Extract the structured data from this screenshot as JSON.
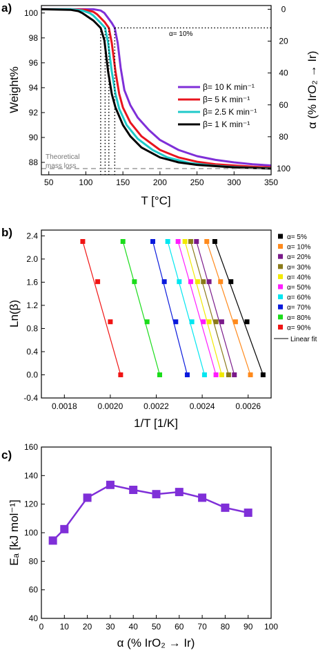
{
  "chart_data": [
    {
      "type": "line",
      "panel_label": "a)",
      "xlabel": "T [°C]",
      "ylabel": "Weight%",
      "y2label": "α (% IrO₂ → Ir)",
      "xlim": [
        40,
        350
      ],
      "ylim": [
        87,
        100.6
      ],
      "y2lim": [
        0,
        100
      ],
      "x_ticks": [
        50,
        100,
        150,
        200,
        250,
        300,
        350
      ],
      "y_ticks": [
        88,
        90,
        92,
        94,
        96,
        98,
        100
      ],
      "y2_ticks": [
        0,
        20,
        40,
        60,
        80,
        100
      ],
      "annotation": "α= 10%",
      "alpha10_weight": 98.8,
      "theoretical_weight": 87.5,
      "theoretical_label": [
        "Theoretical",
        "mass loss"
      ],
      "grid": false,
      "legend_position": "center-right",
      "series": [
        {
          "name": "β= 10 K min⁻¹",
          "color": "#7f2fd8",
          "t10": 139,
          "x": [
            40,
            80,
            100,
            110,
            120,
            125,
            130,
            135,
            139,
            143,
            147,
            152,
            160,
            170,
            185,
            200,
            225,
            250,
            275,
            300,
            325,
            350
          ],
          "y": [
            100.3,
            100.3,
            100.3,
            100.3,
            100.2,
            100.0,
            99.6,
            99.2,
            98.8,
            97.6,
            95.6,
            93.8,
            92.6,
            91.6,
            90.6,
            89.8,
            89.0,
            88.5,
            88.2,
            88.0,
            87.85,
            87.75
          ]
        },
        {
          "name": "β= 5 K min⁻¹",
          "color": "#e8141e",
          "t10": 131,
          "x": [
            40,
            80,
            100,
            110,
            115,
            120,
            125,
            131,
            135,
            140,
            145,
            150,
            160,
            175,
            200,
            225,
            250,
            275,
            300,
            325,
            350
          ],
          "y": [
            100.3,
            100.3,
            100.25,
            100.1,
            99.9,
            99.6,
            99.3,
            98.8,
            97.6,
            95.3,
            93.5,
            92.4,
            91.2,
            90.1,
            89.0,
            88.4,
            88.05,
            87.85,
            87.75,
            87.65,
            87.6
          ]
        },
        {
          "name": "β= 2.5 K min⁻¹",
          "color": "#1fc9c9",
          "t10": 126,
          "x": [
            40,
            80,
            95,
            105,
            110,
            115,
            120,
            126,
            130,
            135,
            140,
            145,
            155,
            170,
            190,
            210,
            240,
            270,
            300,
            325,
            350
          ],
          "y": [
            100.3,
            100.3,
            100.2,
            100.0,
            99.8,
            99.5,
            99.2,
            98.8,
            97.6,
            95.3,
            93.5,
            92.3,
            91.0,
            89.9,
            89.0,
            88.4,
            87.95,
            87.75,
            87.62,
            87.56,
            87.52
          ]
        },
        {
          "name": "β= 1 K min⁻¹",
          "color": "#000000",
          "t10": 120,
          "x": [
            40,
            80,
            90,
            95,
            100,
            105,
            110,
            115,
            120,
            125,
            130,
            135,
            140,
            150,
            160,
            175,
            200,
            225,
            250,
            300,
            350
          ],
          "y": [
            100.3,
            100.25,
            100.15,
            100.0,
            99.8,
            99.6,
            99.4,
            99.1,
            98.8,
            97.8,
            95.3,
            93.5,
            92.4,
            91.0,
            90.1,
            89.2,
            88.4,
            88.0,
            87.8,
            87.6,
            87.5
          ]
        }
      ]
    },
    {
      "type": "scatter",
      "panel_label": "b)",
      "xlabel": "1/T [1/K]",
      "ylabel": "Ln(β)",
      "xlim": [
        0.0017,
        0.0027
      ],
      "ylim": [
        -0.4,
        2.5
      ],
      "x_tick_labels": [
        "0.0018",
        "0.0020",
        "0.0022",
        "0.0024",
        "0.0026"
      ],
      "y_tick_labels": [
        "-0.4",
        "0.0",
        "0.4",
        "0.8",
        "1.2",
        "1.6",
        "2.0",
        "2.4"
      ],
      "y_values": [
        0.0,
        0.916,
        1.609,
        2.303
      ],
      "fit_label": "Linear fit",
      "legend_position": "right",
      "series": [
        {
          "name": "α= 5%",
          "color": "#000000",
          "x": [
            0.002665,
            0.002595,
            0.002525,
            0.002455
          ]
        },
        {
          "name": "α= 10%",
          "color": "#ff8a1c",
          "x": [
            0.00261,
            0.002545,
            0.00248,
            0.00242
          ]
        },
        {
          "name": "α= 20%",
          "color": "#7a1a8a",
          "x": [
            0.00254,
            0.002485,
            0.00243,
            0.002375
          ]
        },
        {
          "name": "α= 30%",
          "color": "#8a7a1a",
          "x": [
            0.002515,
            0.00246,
            0.002405,
            0.00235
          ]
        },
        {
          "name": "α= 40%",
          "color": "#f2ea00",
          "x": [
            0.002485,
            0.00243,
            0.00238,
            0.002325
          ]
        },
        {
          "name": "α= 50%",
          "color": "#ff1cff",
          "x": [
            0.00246,
            0.002405,
            0.00235,
            0.002295
          ]
        },
        {
          "name": "α= 60%",
          "color": "#00e6f0",
          "x": [
            0.00241,
            0.002355,
            0.0023,
            0.00225
          ]
        },
        {
          "name": "α= 70%",
          "color": "#0a1adc",
          "x": [
            0.002335,
            0.002285,
            0.002235,
            0.002185
          ]
        },
        {
          "name": "α= 80%",
          "color": "#1adc1a",
          "x": [
            0.002215,
            0.00216,
            0.002105,
            0.002055
          ]
        },
        {
          "name": "α= 90%",
          "color": "#f01414",
          "x": [
            0.002045,
            0.002,
            0.001945,
            0.00188
          ]
        }
      ]
    },
    {
      "type": "line",
      "panel_label": "c)",
      "xlabel": "α (% IrO₂ → Ir)",
      "ylabel": "Eₐ [kJ mol⁻¹]",
      "xlim": [
        0,
        100
      ],
      "ylim": [
        40,
        160
      ],
      "x_ticks": [
        0,
        10,
        20,
        30,
        40,
        50,
        60,
        70,
        80,
        90,
        100
      ],
      "y_ticks": [
        40,
        60,
        80,
        100,
        120,
        140,
        160
      ],
      "color": "#7f2fd8",
      "x": [
        5,
        10,
        20,
        30,
        40,
        50,
        60,
        70,
        80,
        90
      ],
      "y": [
        94.5,
        102.5,
        124.5,
        133.5,
        130.0,
        127.0,
        128.5,
        124.5,
        117.5,
        114.0
      ]
    }
  ]
}
